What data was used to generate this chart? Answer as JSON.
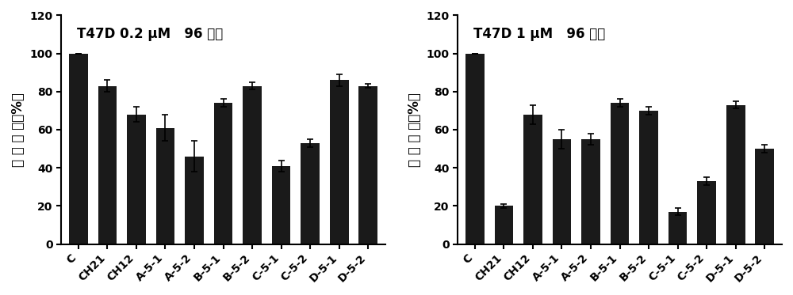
{
  "categories": [
    "C",
    "CH21",
    "CH12",
    "A-5-1",
    "A-5-2",
    "B-5-1",
    "B-5-2",
    "C-5-1",
    "C-5-2",
    "D-5-1",
    "D-5-2"
  ],
  "chart1": {
    "title": "T47D 0.2 μM   96 小时",
    "values": [
      100,
      83,
      68,
      61,
      46,
      74,
      83,
      41,
      53,
      86,
      83
    ],
    "errors": [
      0,
      3,
      4,
      7,
      8,
      2,
      2,
      3,
      2,
      3,
      1
    ]
  },
  "chart2": {
    "title": "T47D 1 μM   96 小时",
    "values": [
      100,
      20,
      68,
      55,
      55,
      74,
      70,
      17,
      33,
      73,
      50
    ],
    "errors": [
      0,
      1,
      5,
      5,
      3,
      2,
      2,
      2,
      2,
      2,
      2
    ]
  },
  "ylabel": "细 胞 存 活（%）",
  "bar_color": "#1a1a1a",
  "bar_width": 0.65,
  "ylim": [
    0,
    120
  ],
  "yticks": [
    0,
    20,
    40,
    60,
    80,
    100,
    120
  ],
  "title_fontsize": 12,
  "ylabel_fontsize": 12,
  "tick_fontsize": 10,
  "background_color": "#ffffff"
}
